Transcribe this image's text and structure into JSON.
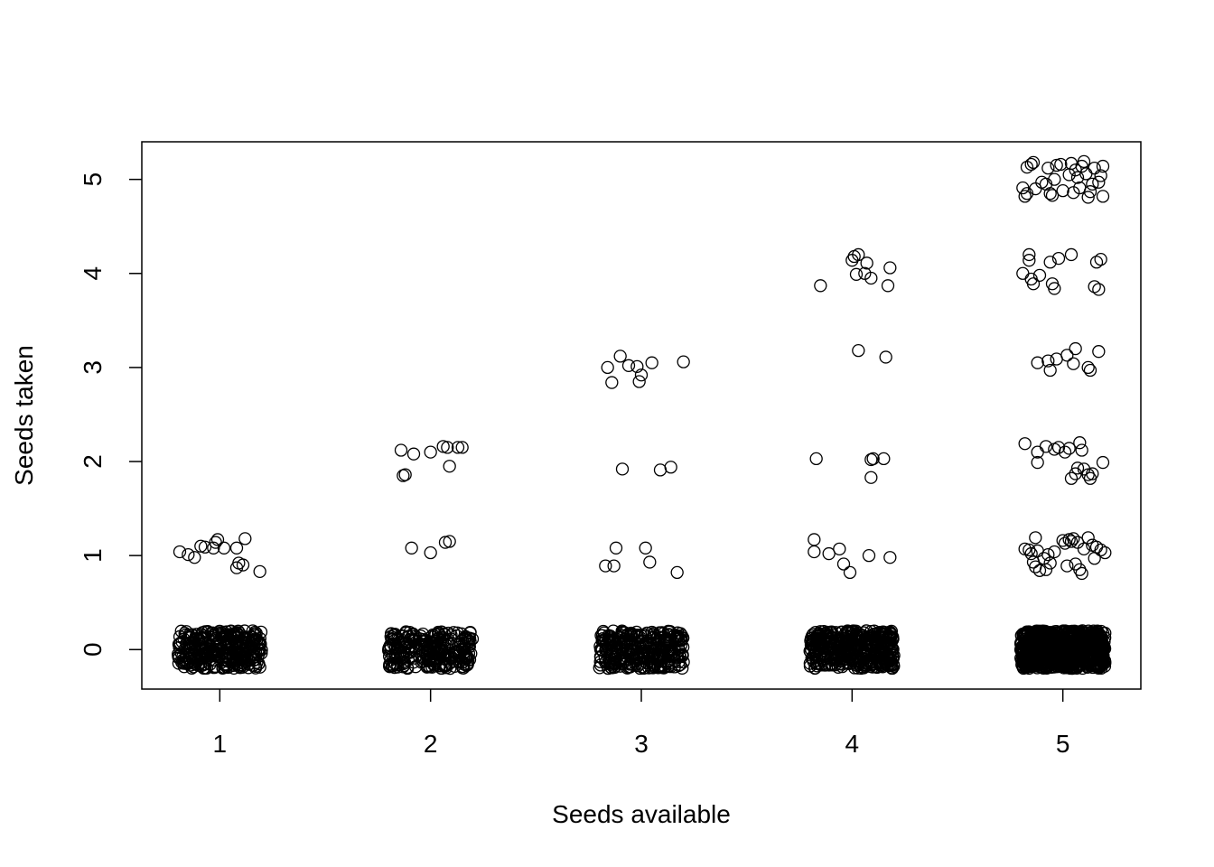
{
  "chart_data": {
    "type": "scatter",
    "title": "",
    "xlabel": "Seeds available",
    "ylabel": "Seeds taken",
    "x_ticks": [
      "1",
      "2",
      "3",
      "4",
      "5"
    ],
    "y_ticks": [
      "0",
      "1",
      "2",
      "3",
      "4",
      "5"
    ],
    "xlim": [
      0.63,
      5.37
    ],
    "ylim": [
      -0.42,
      5.4
    ],
    "grid": false,
    "legend": "none",
    "jitter": 0.2,
    "marker": "open-circle",
    "point_color": "#000000",
    "points": [
      {
        "x": 0.81,
        "y": 1.04
      },
      {
        "x": 0.85,
        "y": 1.01
      },
      {
        "x": 0.88,
        "y": 0.98
      },
      {
        "x": 0.91,
        "y": 1.1
      },
      {
        "x": 0.93,
        "y": 1.09
      },
      {
        "x": 0.97,
        "y": 1.08
      },
      {
        "x": 0.98,
        "y": 1.14
      },
      {
        "x": 0.99,
        "y": 1.17
      },
      {
        "x": 1.02,
        "y": 1.08
      },
      {
        "x": 1.08,
        "y": 1.08
      },
      {
        "x": 1.08,
        "y": 0.87
      },
      {
        "x": 1.09,
        "y": 0.92
      },
      {
        "x": 1.11,
        "y": 0.9
      },
      {
        "x": 1.12,
        "y": 1.18
      },
      {
        "x": 1.19,
        "y": 0.83
      },
      {
        "x": 1.86,
        "y": 2.12
      },
      {
        "x": 1.87,
        "y": 1.85
      },
      {
        "x": 1.88,
        "y": 1.86
      },
      {
        "x": 1.92,
        "y": 2.08
      },
      {
        "x": 1.91,
        "y": 1.08
      },
      {
        "x": 2.0,
        "y": 2.1
      },
      {
        "x": 2.0,
        "y": 1.03
      },
      {
        "x": 2.06,
        "y": 2.16
      },
      {
        "x": 2.07,
        "y": 1.14
      },
      {
        "x": 2.08,
        "y": 2.15
      },
      {
        "x": 2.09,
        "y": 1.15
      },
      {
        "x": 2.09,
        "y": 1.95
      },
      {
        "x": 2.13,
        "y": 2.15
      },
      {
        "x": 2.15,
        "y": 2.15
      },
      {
        "x": 2.84,
        "y": 3.0
      },
      {
        "x": 2.86,
        "y": 2.84
      },
      {
        "x": 2.9,
        "y": 3.12
      },
      {
        "x": 2.94,
        "y": 3.02
      },
      {
        "x": 2.98,
        "y": 3.01
      },
      {
        "x": 2.99,
        "y": 2.85
      },
      {
        "x": 3.0,
        "y": 2.92
      },
      {
        "x": 3.05,
        "y": 3.05
      },
      {
        "x": 3.2,
        "y": 3.06
      },
      {
        "x": 2.91,
        "y": 1.92
      },
      {
        "x": 3.09,
        "y": 1.91
      },
      {
        "x": 3.14,
        "y": 1.94
      },
      {
        "x": 2.83,
        "y": 0.89
      },
      {
        "x": 2.87,
        "y": 0.89
      },
      {
        "x": 2.88,
        "y": 1.08
      },
      {
        "x": 3.02,
        "y": 1.08
      },
      {
        "x": 3.04,
        "y": 0.93
      },
      {
        "x": 3.17,
        "y": 0.82
      },
      {
        "x": 3.85,
        "y": 3.87
      },
      {
        "x": 4.0,
        "y": 4.14
      },
      {
        "x": 4.01,
        "y": 4.18
      },
      {
        "x": 4.03,
        "y": 4.2
      },
      {
        "x": 4.02,
        "y": 3.99
      },
      {
        "x": 4.07,
        "y": 4.11
      },
      {
        "x": 4.06,
        "y": 4.0
      },
      {
        "x": 4.09,
        "y": 3.95
      },
      {
        "x": 4.17,
        "y": 3.87
      },
      {
        "x": 4.18,
        "y": 4.06
      },
      {
        "x": 4.03,
        "y": 3.18
      },
      {
        "x": 4.16,
        "y": 3.11
      },
      {
        "x": 3.83,
        "y": 2.03
      },
      {
        "x": 4.09,
        "y": 2.02
      },
      {
        "x": 4.1,
        "y": 2.03
      },
      {
        "x": 4.09,
        "y": 1.83
      },
      {
        "x": 4.15,
        "y": 2.03
      },
      {
        "x": 3.82,
        "y": 1.17
      },
      {
        "x": 3.82,
        "y": 1.04
      },
      {
        "x": 3.89,
        "y": 1.02
      },
      {
        "x": 3.94,
        "y": 1.07
      },
      {
        "x": 3.96,
        "y": 0.91
      },
      {
        "x": 3.99,
        "y": 0.82
      },
      {
        "x": 4.08,
        "y": 1.0
      },
      {
        "x": 4.18,
        "y": 0.98
      },
      {
        "x": 4.81,
        "y": 4.91
      },
      {
        "x": 4.82,
        "y": 4.82
      },
      {
        "x": 4.83,
        "y": 4.85
      },
      {
        "x": 4.83,
        "y": 5.13
      },
      {
        "x": 4.85,
        "y": 5.16
      },
      {
        "x": 4.86,
        "y": 5.18
      },
      {
        "x": 4.87,
        "y": 4.9
      },
      {
        "x": 4.9,
        "y": 4.97
      },
      {
        "x": 4.92,
        "y": 4.95
      },
      {
        "x": 4.93,
        "y": 5.12
      },
      {
        "x": 4.94,
        "y": 4.85
      },
      {
        "x": 4.95,
        "y": 4.83
      },
      {
        "x": 4.96,
        "y": 5.0
      },
      {
        "x": 4.97,
        "y": 5.15
      },
      {
        "x": 4.99,
        "y": 5.16
      },
      {
        "x": 5.0,
        "y": 4.88
      },
      {
        "x": 5.03,
        "y": 5.05
      },
      {
        "x": 5.04,
        "y": 5.17
      },
      {
        "x": 5.05,
        "y": 4.86
      },
      {
        "x": 5.06,
        "y": 5.1
      },
      {
        "x": 5.08,
        "y": 4.91
      },
      {
        "x": 5.09,
        "y": 5.14
      },
      {
        "x": 5.1,
        "y": 5.19
      },
      {
        "x": 5.11,
        "y": 5.06
      },
      {
        "x": 5.12,
        "y": 4.81
      },
      {
        "x": 5.14,
        "y": 4.95
      },
      {
        "x": 5.15,
        "y": 5.12
      },
      {
        "x": 5.17,
        "y": 4.97
      },
      {
        "x": 5.18,
        "y": 5.04
      },
      {
        "x": 5.19,
        "y": 4.82
      },
      {
        "x": 5.19,
        "y": 5.14
      },
      {
        "x": 5.07,
        "y": 5.02
      },
      {
        "x": 5.13,
        "y": 4.87
      },
      {
        "x": 4.81,
        "y": 4.0
      },
      {
        "x": 4.84,
        "y": 4.2
      },
      {
        "x": 4.84,
        "y": 4.14
      },
      {
        "x": 4.85,
        "y": 3.94
      },
      {
        "x": 4.86,
        "y": 3.89
      },
      {
        "x": 4.89,
        "y": 3.98
      },
      {
        "x": 4.94,
        "y": 4.12
      },
      {
        "x": 4.95,
        "y": 3.89
      },
      {
        "x": 4.96,
        "y": 3.84
      },
      {
        "x": 4.98,
        "y": 4.16
      },
      {
        "x": 5.04,
        "y": 4.2
      },
      {
        "x": 5.15,
        "y": 3.86
      },
      {
        "x": 5.16,
        "y": 4.12
      },
      {
        "x": 5.18,
        "y": 4.15
      },
      {
        "x": 5.17,
        "y": 3.83
      },
      {
        "x": 4.88,
        "y": 3.05
      },
      {
        "x": 4.93,
        "y": 3.07
      },
      {
        "x": 4.94,
        "y": 2.97
      },
      {
        "x": 4.97,
        "y": 3.09
      },
      {
        "x": 5.02,
        "y": 3.13
      },
      {
        "x": 5.05,
        "y": 3.04
      },
      {
        "x": 5.06,
        "y": 3.2
      },
      {
        "x": 5.12,
        "y": 3.0
      },
      {
        "x": 5.13,
        "y": 2.97
      },
      {
        "x": 5.17,
        "y": 3.17
      },
      {
        "x": 4.82,
        "y": 2.19
      },
      {
        "x": 4.88,
        "y": 2.1
      },
      {
        "x": 4.88,
        "y": 1.99
      },
      {
        "x": 4.92,
        "y": 2.16
      },
      {
        "x": 4.96,
        "y": 2.13
      },
      {
        "x": 4.98,
        "y": 2.15
      },
      {
        "x": 5.01,
        "y": 2.1
      },
      {
        "x": 5.03,
        "y": 2.14
      },
      {
        "x": 5.04,
        "y": 1.82
      },
      {
        "x": 5.06,
        "y": 1.87
      },
      {
        "x": 5.07,
        "y": 1.93
      },
      {
        "x": 5.08,
        "y": 2.2
      },
      {
        "x": 5.09,
        "y": 2.12
      },
      {
        "x": 5.1,
        "y": 1.92
      },
      {
        "x": 5.12,
        "y": 1.86
      },
      {
        "x": 5.13,
        "y": 1.82
      },
      {
        "x": 5.14,
        "y": 1.87
      },
      {
        "x": 5.19,
        "y": 1.99
      },
      {
        "x": 4.82,
        "y": 1.07
      },
      {
        "x": 4.84,
        "y": 1.06
      },
      {
        "x": 4.85,
        "y": 1.02
      },
      {
        "x": 4.86,
        "y": 0.93
      },
      {
        "x": 4.87,
        "y": 0.88
      },
      {
        "x": 4.87,
        "y": 1.19
      },
      {
        "x": 4.88,
        "y": 1.05
      },
      {
        "x": 4.89,
        "y": 0.84
      },
      {
        "x": 4.91,
        "y": 0.97
      },
      {
        "x": 4.92,
        "y": 0.85
      },
      {
        "x": 4.93,
        "y": 1.01
      },
      {
        "x": 4.94,
        "y": 0.92
      },
      {
        "x": 4.96,
        "y": 1.04
      },
      {
        "x": 5.0,
        "y": 1.16
      },
      {
        "x": 5.01,
        "y": 1.13
      },
      {
        "x": 5.02,
        "y": 0.89
      },
      {
        "x": 5.03,
        "y": 1.17
      },
      {
        "x": 5.04,
        "y": 1.15
      },
      {
        "x": 5.05,
        "y": 1.18
      },
      {
        "x": 5.06,
        "y": 0.91
      },
      {
        "x": 5.07,
        "y": 1.14
      },
      {
        "x": 5.08,
        "y": 0.85
      },
      {
        "x": 5.09,
        "y": 0.81
      },
      {
        "x": 5.1,
        "y": 1.07
      },
      {
        "x": 5.12,
        "y": 1.19
      },
      {
        "x": 5.14,
        "y": 1.11
      },
      {
        "x": 5.15,
        "y": 0.97
      },
      {
        "x": 5.16,
        "y": 1.09
      },
      {
        "x": 5.18,
        "y": 1.06
      },
      {
        "x": 5.2,
        "y": 1.03
      }
    ],
    "zero_bands": [
      {
        "x_center": 1,
        "count": 340
      },
      {
        "x_center": 2,
        "count": 280
      },
      {
        "x_center": 3,
        "count": 330
      },
      {
        "x_center": 4,
        "count": 420
      },
      {
        "x_center": 5,
        "count": 900
      }
    ]
  }
}
